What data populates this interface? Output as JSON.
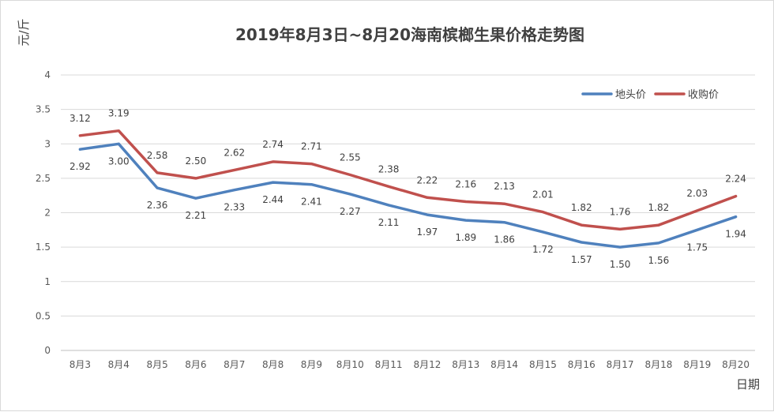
{
  "chart_data": {
    "type": "line",
    "title": "2019年8月3日~8月20海南槟榔生果价格走势图",
    "ylabel": "元/斤",
    "xlabel": "日期",
    "categories": [
      "8月3",
      "8月4",
      "8月5",
      "8月6",
      "8月7",
      "8月8",
      "8月9",
      "8月10",
      "8月11",
      "8月12",
      "8月13",
      "8月14",
      "8月15",
      "8月16",
      "8月17",
      "8月18",
      "8月19",
      "8月20"
    ],
    "ylim": [
      0,
      4
    ],
    "yticks": [
      "0",
      "0.5",
      "1",
      "1.5",
      "2",
      "2.5",
      "3",
      "3.5",
      "4"
    ],
    "grid": true,
    "legend_position": "top-right",
    "series": [
      {
        "name": "地头价",
        "color": "#4f81bd",
        "values": [
          2.92,
          3.0,
          2.36,
          2.21,
          2.33,
          2.44,
          2.41,
          2.27,
          2.11,
          1.97,
          1.89,
          1.86,
          1.72,
          1.57,
          1.5,
          1.56,
          1.75,
          1.94
        ],
        "labels": [
          "2.92",
          "3.00",
          "2.36",
          "2.21",
          "2.33",
          "2.44",
          "2.41",
          "2.27",
          "2.11",
          "1.97",
          "1.89",
          "1.86",
          "1.72",
          "1.57",
          "1.50",
          "1.56",
          "1.75",
          "1.94"
        ]
      },
      {
        "name": "收购价",
        "color": "#c0504d",
        "values": [
          3.12,
          3.19,
          2.58,
          2.5,
          2.62,
          2.74,
          2.71,
          2.55,
          2.38,
          2.22,
          2.16,
          2.13,
          2.01,
          1.82,
          1.76,
          1.82,
          2.03,
          2.24
        ],
        "labels": [
          "3.12",
          "3.19",
          "2.58",
          "2.50",
          "2.62",
          "2.74",
          "2.71",
          "2.55",
          "2.38",
          "2.22",
          "2.16",
          "2.13",
          "2.01",
          "1.82",
          "1.76",
          "1.82",
          "2.03",
          "2.24"
        ]
      }
    ]
  }
}
